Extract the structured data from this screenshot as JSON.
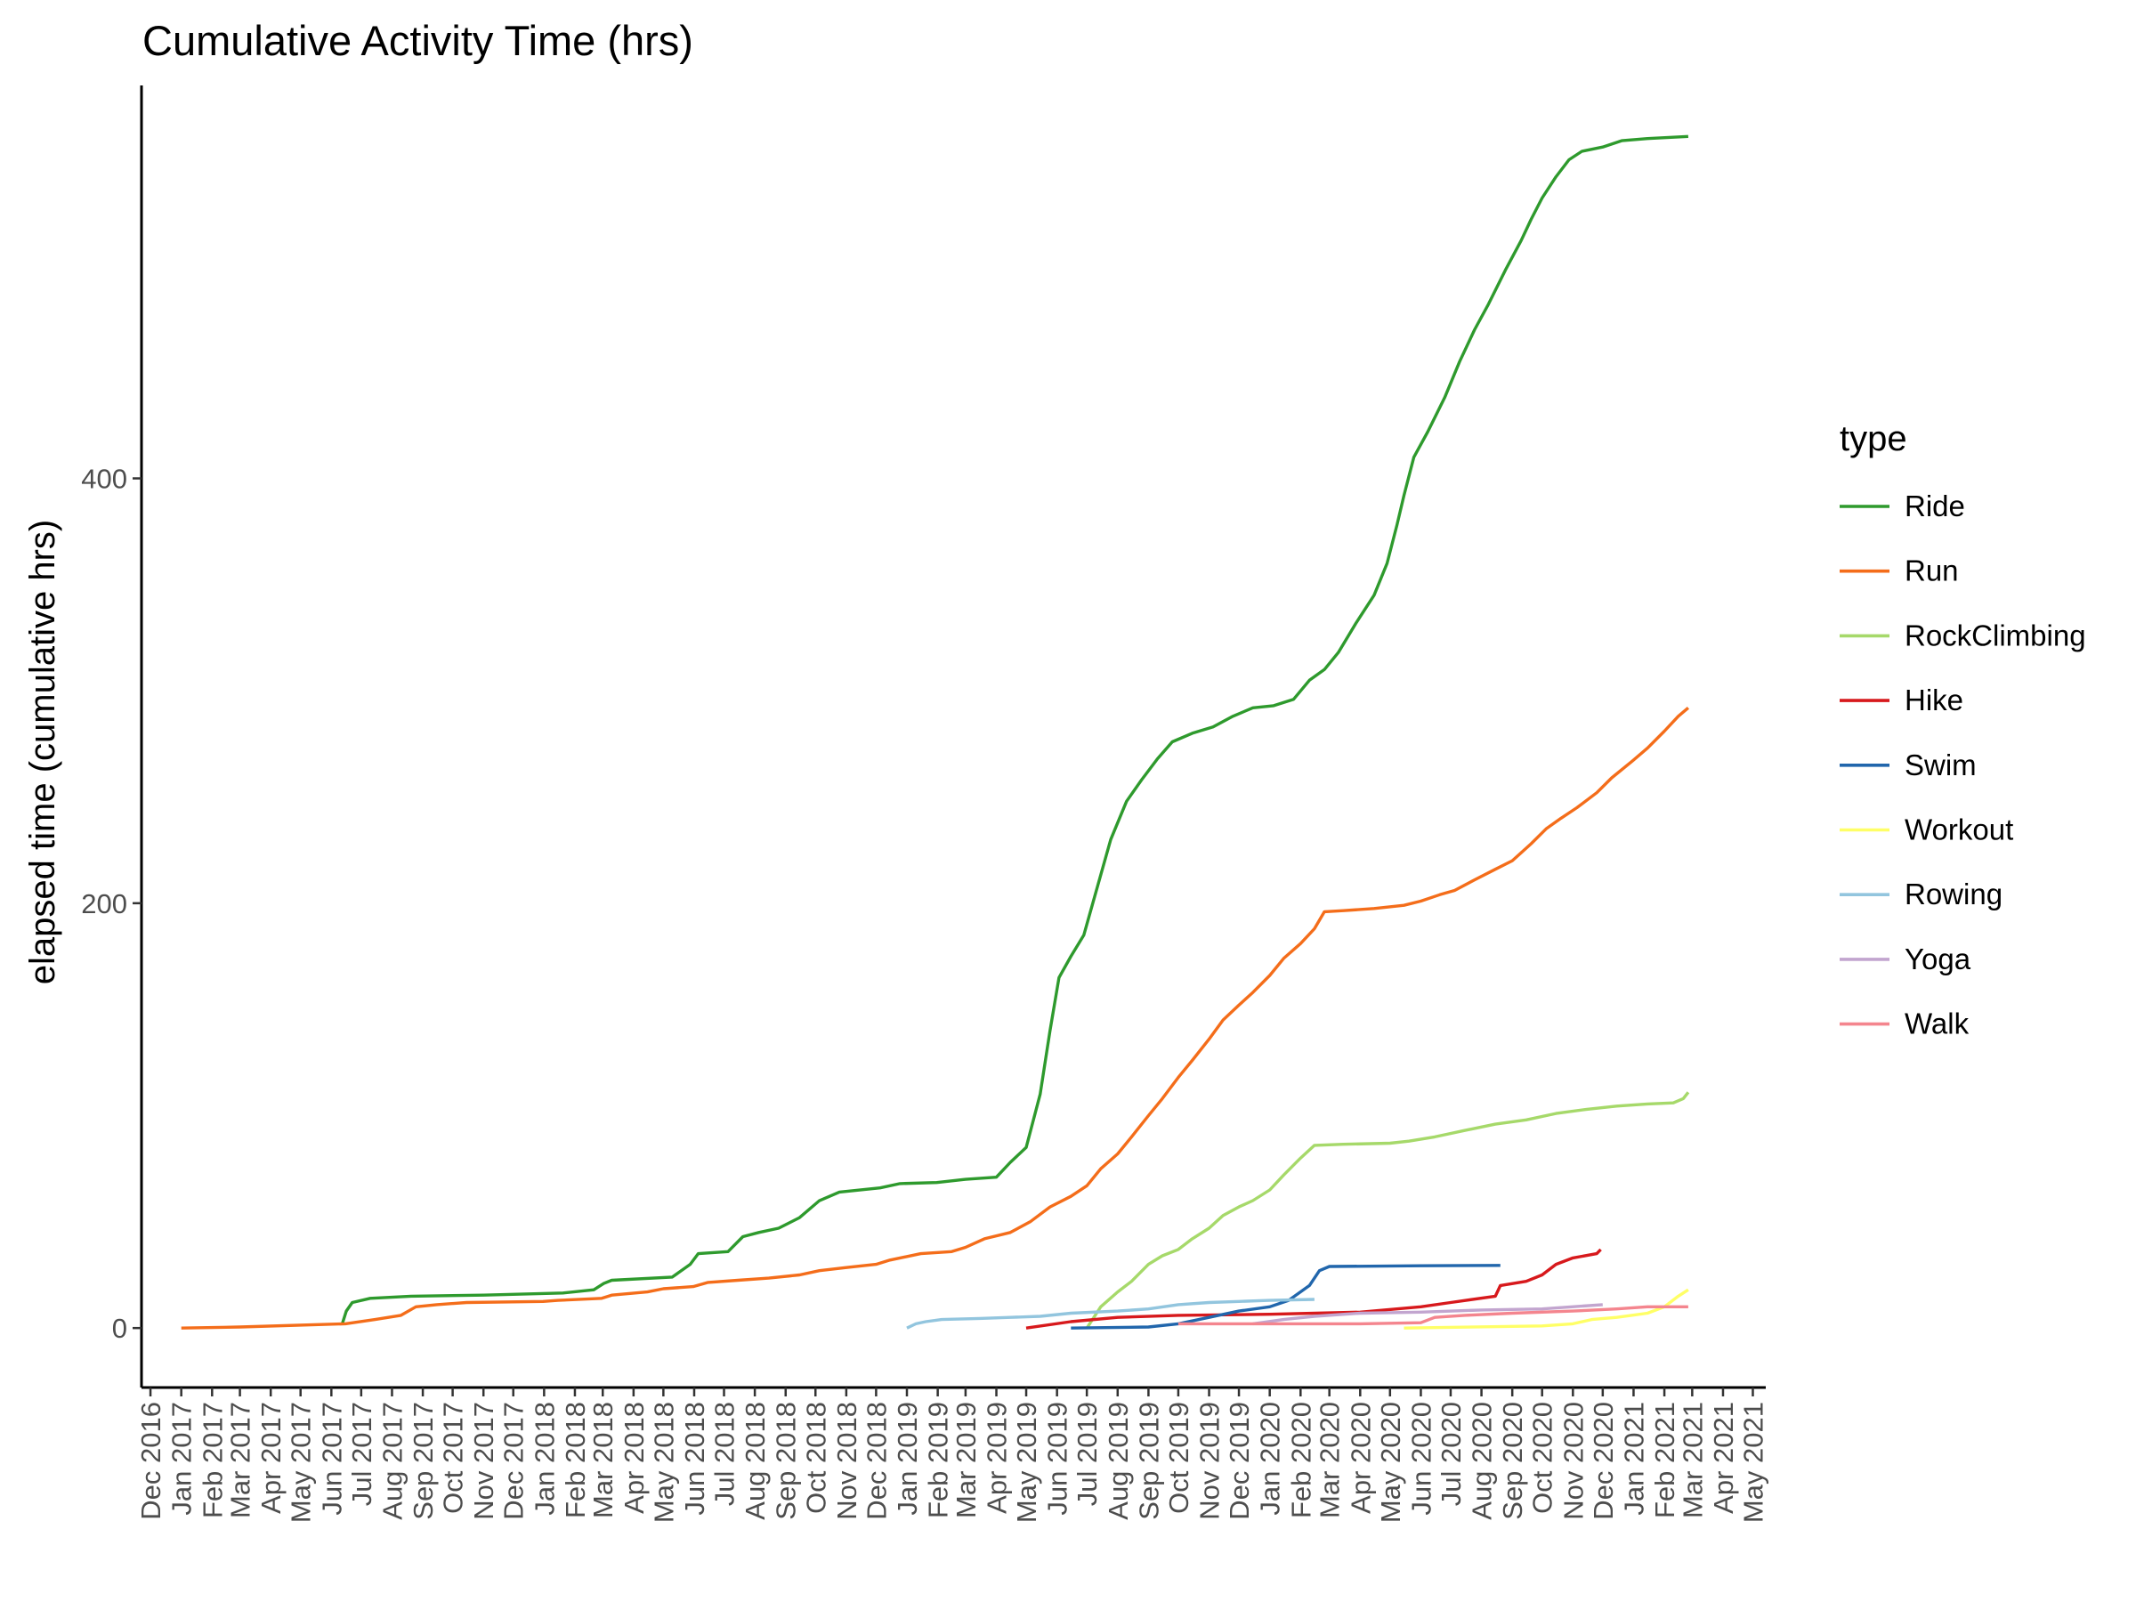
{
  "chart_data": {
    "type": "line",
    "title": "Cumulative Activity Time (hrs)",
    "xlabel": "",
    "ylabel": "elapsed time (cumulative hrs)",
    "ylim": [
      -28,
      585
    ],
    "xlim": [
      "2016-11-22",
      "2021-05-14"
    ],
    "y_ticks": [
      0,
      200,
      400
    ],
    "x_ticks": [
      "2016-12-01",
      "2017-01-01",
      "2017-02-01",
      "2017-03-01",
      "2017-04-01",
      "2017-05-01",
      "2017-06-01",
      "2017-07-01",
      "2017-08-01",
      "2017-09-01",
      "2017-10-01",
      "2017-11-01",
      "2017-12-01",
      "2018-01-01",
      "2018-02-01",
      "2018-03-01",
      "2018-04-01",
      "2018-05-01",
      "2018-06-01",
      "2018-07-01",
      "2018-08-01",
      "2018-09-01",
      "2018-10-01",
      "2018-11-01",
      "2018-12-01",
      "2019-01-01",
      "2019-02-01",
      "2019-03-01",
      "2019-04-01",
      "2019-05-01",
      "2019-06-01",
      "2019-07-01",
      "2019-08-01",
      "2019-09-01",
      "2019-10-01",
      "2019-11-01",
      "2019-12-01",
      "2020-01-01",
      "2020-02-01",
      "2020-03-01",
      "2020-04-01",
      "2020-05-01",
      "2020-06-01",
      "2020-07-01",
      "2020-08-01",
      "2020-09-01",
      "2020-10-01",
      "2020-11-01",
      "2020-12-01",
      "2021-01-01",
      "2021-02-01",
      "2021-03-01",
      "2021-04-01",
      "2021-05-01"
    ],
    "x_tick_labels": [
      "Dec 2016",
      "Jan 2017",
      "Feb 2017",
      "Mar 2017",
      "Apr 2017",
      "May 2017",
      "Jun 2017",
      "Jul 2017",
      "Aug 2017",
      "Sep 2017",
      "Oct 2017",
      "Nov 2017",
      "Dec 2017",
      "Jan 2018",
      "Feb 2018",
      "Mar 2018",
      "Apr 2018",
      "May 2018",
      "Jun 2018",
      "Jul 2018",
      "Aug 2018",
      "Sep 2018",
      "Oct 2018",
      "Nov 2018",
      "Dec 2018",
      "Jan 2019",
      "Feb 2019",
      "Mar 2019",
      "Apr 2019",
      "May 2019",
      "Jun 2019",
      "Jul 2019",
      "Aug 2019",
      "Sep 2019",
      "Oct 2019",
      "Nov 2019",
      "Dec 2019",
      "Jan 2020",
      "Feb 2020",
      "Mar 2020",
      "Apr 2020",
      "May 2020",
      "Jun 2020",
      "Jul 2020",
      "Aug 2020",
      "Sep 2020",
      "Oct 2020",
      "Nov 2020",
      "Dec 2020",
      "Jan 2021",
      "Feb 2021",
      "Mar 2021",
      "Apr 2021",
      "May 2021"
    ],
    "grid": false,
    "legend": {
      "title": "type",
      "position": "right"
    },
    "series": [
      {
        "name": "Ride",
        "color": "#2e9a2d",
        "points": [
          [
            "2017-06-12",
            2
          ],
          [
            "2017-06-16",
            8
          ],
          [
            "2017-06-22",
            12
          ],
          [
            "2017-07-10",
            14
          ],
          [
            "2017-08-20",
            15
          ],
          [
            "2017-11-01",
            15.5
          ],
          [
            "2018-01-20",
            16.5
          ],
          [
            "2018-02-20",
            18
          ],
          [
            "2018-03-02",
            21
          ],
          [
            "2018-03-10",
            22.5
          ],
          [
            "2018-05-10",
            24
          ],
          [
            "2018-05-28",
            30
          ],
          [
            "2018-06-05",
            35
          ],
          [
            "2018-07-05",
            36
          ],
          [
            "2018-07-20",
            43
          ],
          [
            "2018-08-05",
            45
          ],
          [
            "2018-08-25",
            47
          ],
          [
            "2018-09-15",
            52
          ],
          [
            "2018-10-05",
            60
          ],
          [
            "2018-10-25",
            64
          ],
          [
            "2018-12-05",
            66
          ],
          [
            "2018-12-25",
            68
          ],
          [
            "2019-01-31",
            68.5
          ],
          [
            "2019-03-01",
            70
          ],
          [
            "2019-04-01",
            71
          ],
          [
            "2019-04-15",
            78
          ],
          [
            "2019-05-01",
            85
          ],
          [
            "2019-05-15",
            110
          ],
          [
            "2019-05-25",
            140
          ],
          [
            "2019-06-03",
            165
          ],
          [
            "2019-06-15",
            175
          ],
          [
            "2019-06-28",
            185
          ],
          [
            "2019-07-10",
            205
          ],
          [
            "2019-07-25",
            230
          ],
          [
            "2019-08-10",
            248
          ],
          [
            "2019-08-25",
            258
          ],
          [
            "2019-09-10",
            268
          ],
          [
            "2019-09-25",
            276
          ],
          [
            "2019-10-15",
            280
          ],
          [
            "2019-11-05",
            283
          ],
          [
            "2019-11-25",
            288
          ],
          [
            "2019-12-15",
            292
          ],
          [
            "2020-01-05",
            293
          ],
          [
            "2020-01-25",
            296
          ],
          [
            "2020-02-10",
            305
          ],
          [
            "2020-02-25",
            310
          ],
          [
            "2020-03-10",
            318
          ],
          [
            "2020-03-28",
            332
          ],
          [
            "2020-04-15",
            345
          ],
          [
            "2020-04-28",
            360
          ],
          [
            "2020-05-08",
            378
          ],
          [
            "2020-05-15",
            392
          ],
          [
            "2020-05-25",
            410
          ],
          [
            "2020-06-08",
            422
          ],
          [
            "2020-06-25",
            438
          ],
          [
            "2020-07-10",
            455
          ],
          [
            "2020-07-25",
            470
          ],
          [
            "2020-08-08",
            482
          ],
          [
            "2020-08-25",
            498
          ],
          [
            "2020-09-10",
            512
          ],
          [
            "2020-09-20",
            522
          ],
          [
            "2020-10-01",
            532
          ],
          [
            "2020-10-15",
            542
          ],
          [
            "2020-10-28",
            550
          ],
          [
            "2020-11-10",
            554
          ],
          [
            "2020-12-01",
            556
          ],
          [
            "2020-12-20",
            559
          ],
          [
            "2021-01-15",
            560
          ],
          [
            "2021-02-25",
            561
          ]
        ]
      },
      {
        "name": "Run",
        "color": "#f46d1a",
        "points": [
          [
            "2017-01-01",
            0
          ],
          [
            "2017-03-01",
            0.5
          ],
          [
            "2017-06-15",
            2
          ],
          [
            "2017-07-15",
            4
          ],
          [
            "2017-08-10",
            6
          ],
          [
            "2017-08-25",
            10
          ],
          [
            "2017-09-15",
            11
          ],
          [
            "2017-10-15",
            12
          ],
          [
            "2017-12-31",
            12.5
          ],
          [
            "2018-01-15",
            13
          ],
          [
            "2018-02-28",
            14
          ],
          [
            "2018-03-10",
            15.5
          ],
          [
            "2018-04-15",
            17
          ],
          [
            "2018-05-01",
            18.5
          ],
          [
            "2018-05-31",
            19.5
          ],
          [
            "2018-06-15",
            21.5
          ],
          [
            "2018-07-15",
            22.5
          ],
          [
            "2018-08-15",
            23.5
          ],
          [
            "2018-09-15",
            25
          ],
          [
            "2018-10-05",
            27
          ],
          [
            "2018-11-01",
            28.5
          ],
          [
            "2018-12-01",
            30
          ],
          [
            "2018-12-15",
            32
          ],
          [
            "2019-01-15",
            35
          ],
          [
            "2019-02-15",
            36
          ],
          [
            "2019-03-01",
            38
          ],
          [
            "2019-03-20",
            42
          ],
          [
            "2019-04-15",
            45
          ],
          [
            "2019-05-05",
            50
          ],
          [
            "2019-05-25",
            57
          ],
          [
            "2019-06-15",
            62
          ],
          [
            "2019-07-01",
            67
          ],
          [
            "2019-07-15",
            75
          ],
          [
            "2019-08-01",
            82
          ],
          [
            "2019-08-15",
            90
          ],
          [
            "2019-09-01",
            100
          ],
          [
            "2019-09-15",
            108
          ],
          [
            "2019-10-01",
            118
          ],
          [
            "2019-10-15",
            126
          ],
          [
            "2019-11-01",
            136
          ],
          [
            "2019-11-15",
            145
          ],
          [
            "2019-12-01",
            152
          ],
          [
            "2019-12-15",
            158
          ],
          [
            "2020-01-01",
            166
          ],
          [
            "2020-01-15",
            174
          ],
          [
            "2020-02-01",
            181
          ],
          [
            "2020-02-15",
            188
          ],
          [
            "2020-02-25",
            196
          ],
          [
            "2020-03-15",
            196.5
          ],
          [
            "2020-04-15",
            197.5
          ],
          [
            "2020-05-15",
            199
          ],
          [
            "2020-06-01",
            201
          ],
          [
            "2020-06-20",
            204
          ],
          [
            "2020-07-05",
            206
          ],
          [
            "2020-07-25",
            211
          ],
          [
            "2020-08-15",
            216
          ],
          [
            "2020-09-01",
            220
          ],
          [
            "2020-09-20",
            228
          ],
          [
            "2020-10-05",
            235
          ],
          [
            "2020-10-20",
            240
          ],
          [
            "2020-11-05",
            245
          ],
          [
            "2020-11-25",
            252
          ],
          [
            "2020-12-10",
            259
          ],
          [
            "2020-12-31",
            267
          ],
          [
            "2021-01-15",
            273
          ],
          [
            "2021-02-01",
            281
          ],
          [
            "2021-02-15",
            288
          ],
          [
            "2021-02-25",
            292
          ]
        ]
      },
      {
        "name": "RockClimbing",
        "color": "#a6d96a",
        "points": [
          [
            "2019-07-01",
            0
          ],
          [
            "2019-07-15",
            10
          ],
          [
            "2019-08-01",
            17
          ],
          [
            "2019-08-15",
            22
          ],
          [
            "2019-09-01",
            30
          ],
          [
            "2019-09-15",
            34
          ],
          [
            "2019-10-01",
            37
          ],
          [
            "2019-10-15",
            42
          ],
          [
            "2019-11-01",
            47
          ],
          [
            "2019-11-15",
            53
          ],
          [
            "2019-12-01",
            57
          ],
          [
            "2019-12-15",
            60
          ],
          [
            "2020-01-01",
            65
          ],
          [
            "2020-01-15",
            72
          ],
          [
            "2020-02-01",
            80
          ],
          [
            "2020-02-15",
            86
          ],
          [
            "2020-03-15",
            86.5
          ],
          [
            "2020-05-01",
            87
          ],
          [
            "2020-05-20",
            88
          ],
          [
            "2020-06-15",
            90
          ],
          [
            "2020-07-15",
            93
          ],
          [
            "2020-08-15",
            96
          ],
          [
            "2020-09-15",
            98
          ],
          [
            "2020-10-15",
            101
          ],
          [
            "2020-11-15",
            103
          ],
          [
            "2020-12-15",
            104.5
          ],
          [
            "2021-01-15",
            105.5
          ],
          [
            "2021-02-10",
            106
          ],
          [
            "2021-02-20",
            108
          ],
          [
            "2021-02-25",
            111
          ]
        ]
      },
      {
        "name": "Hike",
        "color": "#d7191c",
        "points": [
          [
            "2019-05-01",
            0
          ],
          [
            "2019-06-15",
            3
          ],
          [
            "2019-08-01",
            5
          ],
          [
            "2019-10-01",
            6
          ],
          [
            "2020-01-01",
            6.5
          ],
          [
            "2020-04-01",
            7.5
          ],
          [
            "2020-06-01",
            10
          ],
          [
            "2020-07-01",
            12
          ],
          [
            "2020-08-15",
            15
          ],
          [
            "2020-08-20",
            20
          ],
          [
            "2020-09-15",
            22
          ],
          [
            "2020-10-01",
            25
          ],
          [
            "2020-10-15",
            30
          ],
          [
            "2020-11-01",
            33
          ],
          [
            "2020-11-25",
            35
          ],
          [
            "2020-11-29",
            37
          ]
        ]
      },
      {
        "name": "Swim",
        "color": "#2166ac",
        "points": [
          [
            "2019-06-15",
            0
          ],
          [
            "2019-09-01",
            0.5
          ],
          [
            "2019-10-01",
            2
          ],
          [
            "2019-11-01",
            5
          ],
          [
            "2019-12-01",
            8
          ],
          [
            "2020-01-01",
            10
          ],
          [
            "2020-01-20",
            13
          ],
          [
            "2020-02-10",
            20
          ],
          [
            "2020-02-20",
            27
          ],
          [
            "2020-03-01",
            29
          ],
          [
            "2020-06-01",
            29.3
          ],
          [
            "2020-08-20",
            29.5
          ]
        ]
      },
      {
        "name": "Workout",
        "color": "#ffff66",
        "points": [
          [
            "2020-05-15",
            0
          ],
          [
            "2020-10-01",
            1
          ],
          [
            "2020-11-01",
            2
          ],
          [
            "2020-11-20",
            4
          ],
          [
            "2020-12-15",
            5
          ],
          [
            "2021-01-15",
            7
          ],
          [
            "2021-02-01",
            10
          ],
          [
            "2021-02-15",
            15
          ],
          [
            "2021-02-25",
            18
          ]
        ]
      },
      {
        "name": "Rowing",
        "color": "#92c5de",
        "points": [
          [
            "2019-01-01",
            0
          ],
          [
            "2019-01-10",
            2
          ],
          [
            "2019-01-20",
            3
          ],
          [
            "2019-02-05",
            4
          ],
          [
            "2019-03-15",
            4.5
          ],
          [
            "2019-04-15",
            5
          ],
          [
            "2019-05-15",
            5.5
          ],
          [
            "2019-06-15",
            7
          ],
          [
            "2019-08-01",
            8
          ],
          [
            "2019-09-01",
            9
          ],
          [
            "2019-10-01",
            11
          ],
          [
            "2019-11-01",
            12
          ],
          [
            "2019-12-01",
            12.5
          ],
          [
            "2020-01-01",
            13
          ],
          [
            "2020-02-15",
            13.5
          ]
        ]
      },
      {
        "name": "Yoga",
        "color": "#c2a5cf",
        "points": [
          [
            "2019-12-15",
            2
          ],
          [
            "2020-01-15",
            4
          ],
          [
            "2020-02-15",
            5.5
          ],
          [
            "2020-04-01",
            7
          ],
          [
            "2020-06-01",
            7.5
          ],
          [
            "2020-08-01",
            8.5
          ],
          [
            "2020-10-01",
            9
          ],
          [
            "2020-12-01",
            11
          ]
        ]
      },
      {
        "name": "Walk",
        "color": "#f4858e",
        "points": [
          [
            "2019-10-01",
            2
          ],
          [
            "2020-04-01",
            2
          ],
          [
            "2020-06-01",
            2.5
          ],
          [
            "2020-06-15",
            5
          ],
          [
            "2020-07-15",
            6
          ],
          [
            "2020-09-01",
            7
          ],
          [
            "2020-11-01",
            8
          ],
          [
            "2020-12-15",
            9
          ],
          [
            "2021-01-15",
            10
          ],
          [
            "2021-02-25",
            10
          ]
        ]
      }
    ]
  }
}
